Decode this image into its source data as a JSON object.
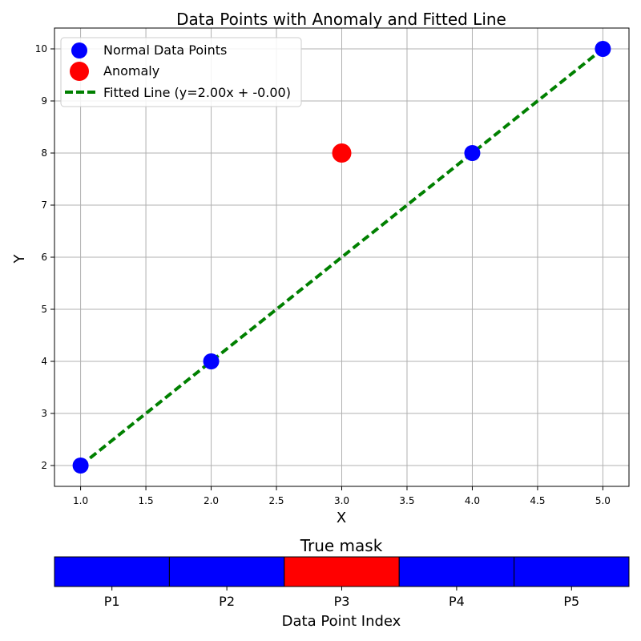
{
  "chart_data": [
    {
      "type": "scatter",
      "title": "Data Points with Anomaly and Fitted Line",
      "xlabel": "X",
      "ylabel": "Y",
      "xlim": [
        0.8,
        5.2
      ],
      "ylim": [
        1.6,
        10.4
      ],
      "xticks": [
        1.0,
        1.5,
        2.0,
        2.5,
        3.0,
        3.5,
        4.0,
        4.5,
        5.0
      ],
      "xtick_labels": [
        "1.0",
        "1.5",
        "2.0",
        "2.5",
        "3.0",
        "3.5",
        "4.0",
        "4.5",
        "5.0"
      ],
      "yticks": [
        2,
        3,
        4,
        5,
        6,
        7,
        8,
        9,
        10
      ],
      "ytick_labels": [
        "2",
        "3",
        "4",
        "5",
        "6",
        "7",
        "8",
        "9",
        "10"
      ],
      "grid": true,
      "legend_position": "top-left",
      "series": [
        {
          "name": "Normal Data Points",
          "kind": "scatter",
          "color": "#0000ff",
          "x": [
            1,
            2,
            4,
            5
          ],
          "y": [
            2,
            4,
            8,
            10
          ]
        },
        {
          "name": "Anomaly",
          "kind": "scatter",
          "color": "#ff0000",
          "x": [
            3
          ],
          "y": [
            8
          ]
        },
        {
          "name": "Fitted Line (y=2.00x + -0.00)",
          "kind": "line",
          "style": "dashed",
          "color": "#008000",
          "x": [
            1,
            2,
            3,
            4,
            5
          ],
          "y": [
            2,
            4,
            6,
            8,
            10
          ]
        }
      ]
    },
    {
      "type": "heatmap",
      "title": "True mask",
      "xlabel": "Data Point Index",
      "categories": [
        "P1",
        "P2",
        "P3",
        "P4",
        "P5"
      ],
      "values": [
        0,
        0,
        1,
        0,
        0
      ],
      "colors": {
        "0": "#0000ff",
        "1": "#ff0000"
      }
    }
  ]
}
